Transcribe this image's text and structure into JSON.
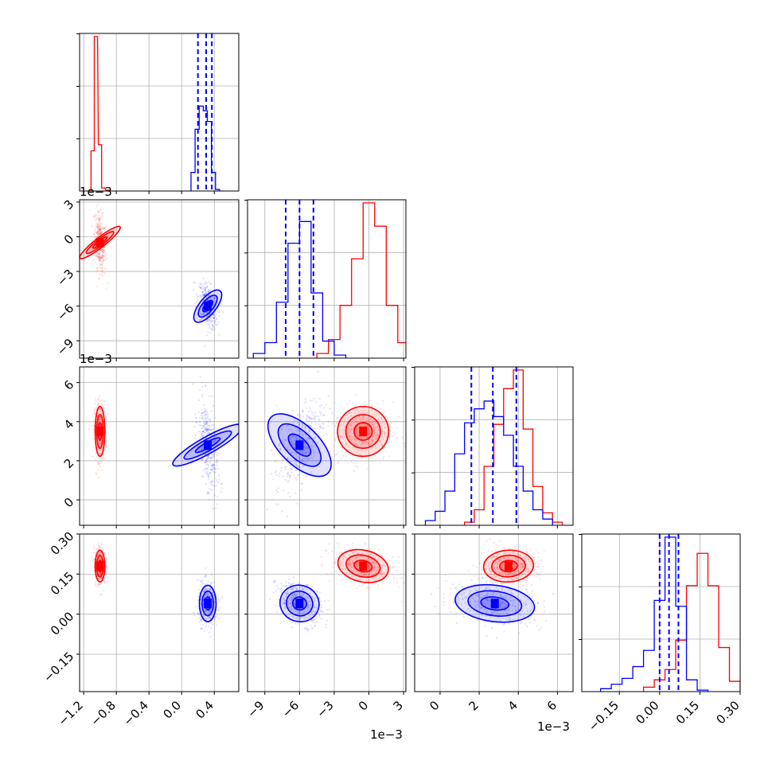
{
  "chart_data": {
    "type": "corner",
    "series": [
      {
        "color_name": "red",
        "color": "#ff0000"
      },
      {
        "color_name": "blue",
        "color": "#0000ff"
      }
    ],
    "parameters": [
      {
        "range": [
          -1.25,
          0.7
        ],
        "ticks": [
          -1.2,
          -0.8,
          -0.4,
          0.0,
          0.4
        ],
        "tick_labels": [
          "−1.2",
          "−0.8",
          "−0.4",
          "0.0",
          "0.4"
        ],
        "offset_text": "",
        "histograms": {
          "red": [
            [
              -1.09,
              0.26
            ],
            [
              -1.05,
              1.0
            ],
            [
              -1.0,
              0.3
            ],
            [
              -0.96,
              0.02
            ],
            [
              -0.91,
              0.005
            ]
          ],
          "blue": [
            [
              0.14,
              0.12
            ],
            [
              0.19,
              0.4
            ],
            [
              0.24,
              0.55
            ],
            [
              0.29,
              0.52
            ],
            [
              0.34,
              0.45
            ],
            [
              0.39,
              0.12
            ],
            [
              0.44,
              0.01
            ]
          ]
        },
        "quantiles_blue": [
          0.2,
          0.3,
          0.37
        ]
      },
      {
        "range": [
          -10.5,
          3.2
        ],
        "ticks": [
          -9,
          -6,
          -3,
          0,
          3
        ],
        "tick_labels": [
          "−9",
          "−6",
          "−3",
          "0",
          "3"
        ],
        "offset_text": "1e−3",
        "histograms": {
          "red": [
            [
              -4.0,
              0.03
            ],
            [
              -3.0,
              0.12
            ],
            [
              -2.0,
              0.34
            ],
            [
              -1.0,
              0.64
            ],
            [
              0.0,
              1.0
            ],
            [
              1.0,
              0.85
            ],
            [
              2.0,
              0.34
            ],
            [
              3.0,
              0.1
            ]
          ],
          "blue": [
            [
              -9.5,
              0.03
            ],
            [
              -8.5,
              0.1
            ],
            [
              -7.5,
              0.36
            ],
            [
              -6.5,
              0.74
            ],
            [
              -5.5,
              0.88
            ],
            [
              -4.5,
              0.42
            ],
            [
              -3.5,
              0.11
            ],
            [
              -2.5,
              0.02
            ]
          ]
        },
        "quantiles_blue": [
          -7.2,
          -6.0,
          -4.8
        ]
      },
      {
        "range": [
          -1.3,
          6.8
        ],
        "ticks": [
          0,
          2,
          4,
          6
        ],
        "tick_labels": [
          "0",
          "2",
          "4",
          "6"
        ],
        "offset_text": "1e−3",
        "histograms": {
          "red": [
            [
              1.5,
              0.02
            ],
            [
              2.0,
              0.1
            ],
            [
              2.5,
              0.38
            ],
            [
              3.0,
              0.65
            ],
            [
              3.5,
              0.88
            ],
            [
              4.0,
              1.0
            ],
            [
              4.5,
              0.62
            ],
            [
              5.0,
              0.25
            ],
            [
              5.5,
              0.08
            ],
            [
              6.0,
              0.02
            ]
          ],
          "blue": [
            [
              -0.5,
              0.03
            ],
            [
              0.0,
              0.09
            ],
            [
              0.5,
              0.22
            ],
            [
              1.0,
              0.46
            ],
            [
              1.5,
              0.66
            ],
            [
              2.0,
              0.75
            ],
            [
              2.5,
              0.8
            ],
            [
              3.0,
              0.7
            ],
            [
              3.5,
              0.58
            ],
            [
              4.0,
              0.38
            ],
            [
              4.5,
              0.22
            ],
            [
              5.0,
              0.1
            ],
            [
              5.5,
              0.04
            ]
          ]
        },
        "quantiles_blue": [
          1.6,
          2.7,
          3.9
        ]
      },
      {
        "range": [
          -0.29,
          0.3
        ],
        "ticks": [
          -0.15,
          0.0,
          0.15,
          0.3
        ],
        "tick_labels": [
          "−0.15",
          "0.00",
          "0.15",
          "0.30"
        ],
        "offset_text": "",
        "histograms": {
          "red": [
            [
              -0.04,
              0.03
            ],
            [
              0.0,
              0.08
            ],
            [
              0.04,
              0.15
            ],
            [
              0.08,
              0.35
            ],
            [
              0.12,
              0.72
            ],
            [
              0.16,
              0.94
            ],
            [
              0.2,
              0.72
            ],
            [
              0.24,
              0.3
            ],
            [
              0.28,
              0.07
            ]
          ],
          "blue": [
            [
              -0.2,
              0.02
            ],
            [
              -0.16,
              0.05
            ],
            [
              -0.12,
              0.09
            ],
            [
              -0.08,
              0.17
            ],
            [
              -0.04,
              0.28
            ],
            [
              0.0,
              0.62
            ],
            [
              0.04,
              1.05
            ],
            [
              0.08,
              0.58
            ],
            [
              0.12,
              0.08
            ],
            [
              0.16,
              0.01
            ]
          ]
        },
        "quantiles_blue": [
          0.0,
          0.035,
          0.07
        ]
      }
    ],
    "clusters": {
      "red": {
        "mean": [
          -1.0,
          -0.5,
          3.5,
          0.18
        ],
        "sd": [
          0.035,
          1.3,
          0.75,
          0.035
        ]
      },
      "blue": {
        "mean": [
          0.32,
          -6.0,
          2.8,
          0.04
        ],
        "sd": [
          0.06,
          1.0,
          1.2,
          0.04
        ]
      }
    }
  }
}
